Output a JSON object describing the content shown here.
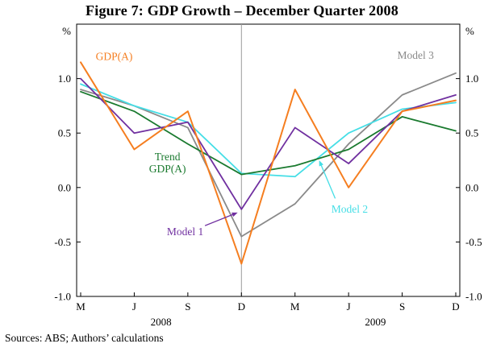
{
  "figure": {
    "sources": "Sources:  ABS; Authors’ calculations"
  },
  "chart_data": {
    "type": "line",
    "title": "Figure 7: GDP Growth – December Quarter 2008",
    "ylabel_left": "%",
    "ylabel_right": "%",
    "ylim": [
      -1.0,
      1.5
    ],
    "yticks": [
      1.0,
      0.5,
      0.0,
      -0.5,
      -1.0
    ],
    "ytick_labels": [
      "1.0",
      "0.5",
      "0.0",
      "-0.5",
      "-1.0"
    ],
    "x_tick_labels": [
      "M",
      "J",
      "S",
      "D",
      "M",
      "J",
      "S",
      "D"
    ],
    "year_labels": [
      {
        "label": "2008",
        "position": 1.5
      },
      {
        "label": "2009",
        "position": 5.5
      }
    ],
    "divider_position": 3,
    "grid": false,
    "legend": "in-plot colored annotations",
    "series": [
      {
        "name": "Model 3",
        "color": "#8A8A8A",
        "width": 1.8,
        "values": [
          0.9,
          0.75,
          0.55,
          -0.45,
          -0.15,
          0.4,
          0.85,
          1.05
        ]
      },
      {
        "name": "Model 2",
        "color": "#45DEE6",
        "width": 1.8,
        "values": [
          0.95,
          0.75,
          0.6,
          0.13,
          0.1,
          0.5,
          0.72,
          0.78
        ]
      },
      {
        "name": "Trend GDP(A)",
        "color": "#1A7A2F",
        "width": 1.8,
        "values": [
          0.88,
          0.7,
          0.4,
          0.12,
          0.2,
          0.35,
          0.65,
          0.52
        ]
      },
      {
        "name": "Model 1",
        "color": "#7030A0",
        "width": 1.8,
        "values": [
          1.0,
          0.5,
          0.6,
          -0.2,
          0.55,
          0.22,
          0.7,
          0.85
        ]
      },
      {
        "name": "GDP(A)",
        "color": "#F57E20",
        "width": 2,
        "values": [
          1.15,
          0.35,
          0.7,
          -0.7,
          0.9,
          0.0,
          0.7,
          0.8
        ]
      }
    ],
    "annotations": [
      {
        "text": "GDP(A)",
        "color": "#F57E20",
        "x": 0.28,
        "y": 1.2,
        "anchor": "start"
      },
      {
        "text": "Model 3",
        "color": "#8A8A8A",
        "x": 6.25,
        "y": 1.21,
        "anchor": "middle"
      },
      {
        "lines": [
          "Trend",
          "GDP(A)"
        ],
        "color": "#1A7A2F",
        "x": 1.62,
        "y": 0.28,
        "anchor": "middle"
      },
      {
        "text": "Model 1",
        "color": "#7030A0",
        "x": 1.95,
        "y": -0.41,
        "anchor": "middle",
        "arrow": {
          "x1": 2.32,
          "y1": -0.35,
          "x2": 2.93,
          "y2": -0.23
        }
      },
      {
        "text": "Model 2",
        "color": "#45DEE6",
        "x": 5.02,
        "y": -0.2,
        "anchor": "middle",
        "arrow": {
          "x1": 4.75,
          "y1": -0.1,
          "x2": 4.45,
          "y2": 0.25
        }
      }
    ]
  }
}
